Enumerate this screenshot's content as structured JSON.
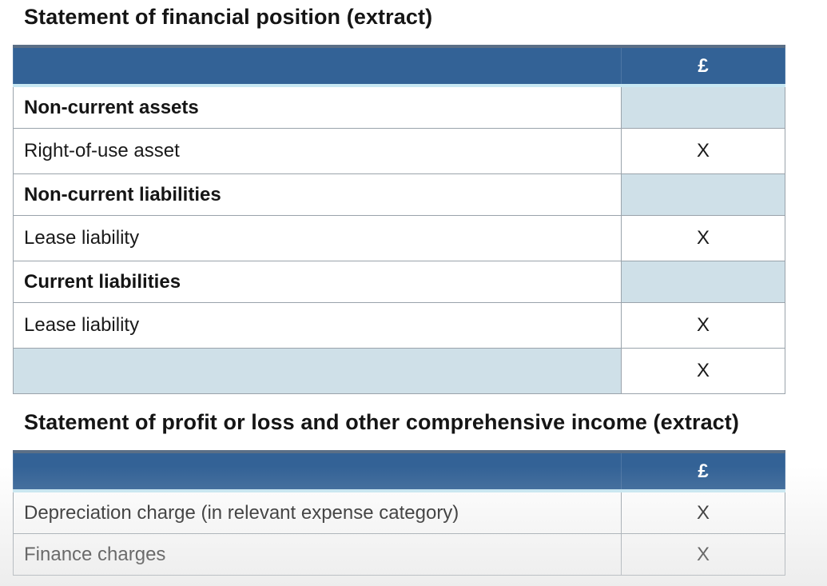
{
  "sofp": {
    "title": "Statement of financial position (extract)",
    "currency_header": "£",
    "rows": [
      {
        "label": "Non-current assets",
        "value": ""
      },
      {
        "label": "Right-of-use asset",
        "value": "X"
      },
      {
        "label": "Non-current liabilities",
        "value": ""
      },
      {
        "label": "Lease liability",
        "value": "X"
      },
      {
        "label": "Current liabilities",
        "value": ""
      },
      {
        "label": "Lease liability",
        "value": "X"
      },
      {
        "label": "",
        "value": "X"
      }
    ]
  },
  "pl": {
    "title": "Statement of profit or loss and other comprehensive income (extract)",
    "currency_header": "£",
    "rows": [
      {
        "label": "Depreciation charge (in relevant expense category)",
        "value": "X"
      },
      {
        "label": "Finance charges",
        "value": "X"
      }
    ]
  },
  "colors": {
    "header_blue": "#336296",
    "header_light_band": "#c8e8f3",
    "shaded_cell": "#cfe0e8",
    "border": "#9aa3ab"
  }
}
